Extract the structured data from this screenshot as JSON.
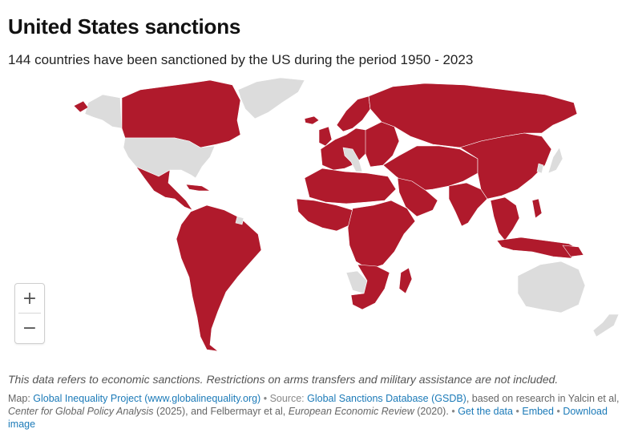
{
  "header": {
    "title": "United States sanctions",
    "subtitle": "144 countries have been sanctioned by the US during the period 1950 - 2023"
  },
  "map": {
    "sanctioned_color": "#b01a2c",
    "not_sanctioned_color": "#dcdcdc",
    "background_color": "#ffffff",
    "zoom_in_label": "+",
    "zoom_out_label": "−"
  },
  "note": "This data refers to economic sanctions. Restrictions on arms transfers and military assistance are not included.",
  "footer": {
    "map_prefix": "Map:",
    "map_link": "Global Inequality Project (www.globalinequality.org)",
    "source_prefix": "• Source:",
    "source_link": "Global Sanctions Database (GSDB)",
    "source_text_1": ", based on research in Yalcin et al, ",
    "journal_1": "Center for Global Policy Analysis",
    "source_text_2": " (2025), and Felbermayr et al, ",
    "journal_2": "European Economic Review",
    "source_text_3": " (2020).",
    "sep1": "•",
    "get_data": "Get the data",
    "sep2": "•",
    "embed": "Embed",
    "sep3": "•",
    "download": "Download image"
  }
}
